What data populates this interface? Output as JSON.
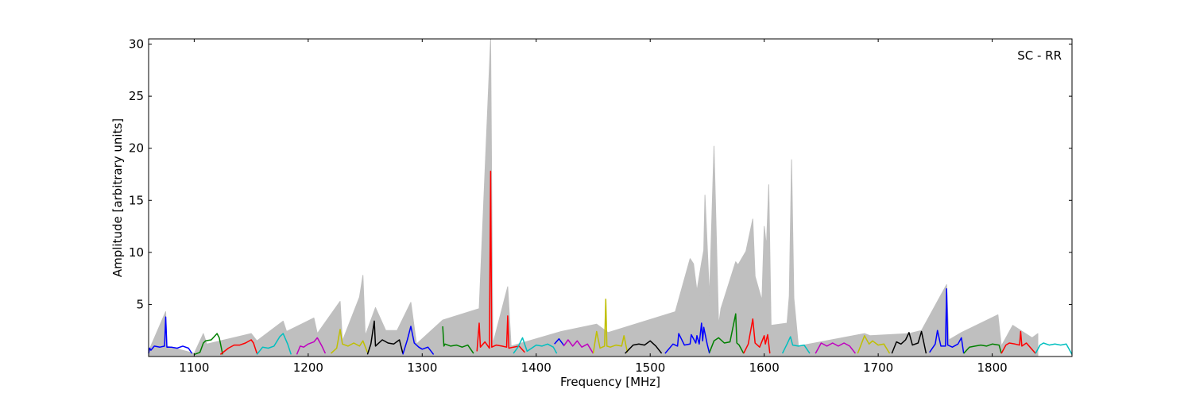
{
  "chart_data": {
    "type": "line",
    "title": "",
    "annotation": "SC - RR",
    "xlabel": "Frequency [MHz]",
    "ylabel": "Amplitude [arbitrary units]",
    "xlim": [
      1060,
      1870
    ],
    "ylim": [
      0,
      30.5
    ],
    "xticks": [
      1100,
      1200,
      1300,
      1400,
      1500,
      1600,
      1700,
      1800
    ],
    "yticks": [
      5,
      10,
      15,
      20,
      25,
      30
    ],
    "grid": false,
    "legend": "none",
    "background_series": {
      "color": "#bfbfbf",
      "points": [
        [
          1060,
          0.5
        ],
        [
          1075,
          4.3
        ],
        [
          1076,
          1.0
        ],
        [
          1100,
          0.3
        ],
        [
          1108,
          2.2
        ],
        [
          1111,
          1.2
        ],
        [
          1150,
          2.2
        ],
        [
          1155,
          1.5
        ],
        [
          1178,
          3.4
        ],
        [
          1181,
          2.4
        ],
        [
          1205,
          3.7
        ],
        [
          1208,
          2.2
        ],
        [
          1228,
          5.3
        ],
        [
          1230,
          1.5
        ],
        [
          1245,
          5.7
        ],
        [
          1248,
          7.8
        ],
        [
          1250,
          2.0
        ],
        [
          1259,
          4.7
        ],
        [
          1268,
          2.5
        ],
        [
          1278,
          2.5
        ],
        [
          1290,
          5.2
        ],
        [
          1295,
          1.2
        ],
        [
          1318,
          3.5
        ],
        [
          1350,
          4.6
        ],
        [
          1360,
          30.5
        ],
        [
          1362,
          1.2
        ],
        [
          1375,
          6.7
        ],
        [
          1378,
          1.0
        ],
        [
          1422,
          2.4
        ],
        [
          1453,
          3.1
        ],
        [
          1463,
          2.3
        ],
        [
          1522,
          4.3
        ],
        [
          1535,
          9.4
        ],
        [
          1538,
          8.9
        ],
        [
          1541,
          6.3
        ],
        [
          1545,
          9.0
        ],
        [
          1547,
          10.2
        ],
        [
          1548,
          15.5
        ],
        [
          1552,
          5.7
        ],
        [
          1556,
          20.2
        ],
        [
          1560,
          3.0
        ],
        [
          1562,
          4.6
        ],
        [
          1575,
          9.1
        ],
        [
          1577,
          8.8
        ],
        [
          1584,
          10.1
        ],
        [
          1590,
          13.2
        ],
        [
          1592,
          7.7
        ],
        [
          1598,
          5.4
        ],
        [
          1600,
          12.5
        ],
        [
          1602,
          10.6
        ],
        [
          1604,
          16.5
        ],
        [
          1606,
          3.0
        ],
        [
          1620,
          3.2
        ],
        [
          1622,
          5.8
        ],
        [
          1624,
          18.9
        ],
        [
          1626,
          5.6
        ],
        [
          1630,
          1.0
        ],
        [
          1688,
          2.2
        ],
        [
          1693,
          2.0
        ],
        [
          1727,
          2.2
        ],
        [
          1738,
          2.5
        ],
        [
          1760,
          6.9
        ],
        [
          1762,
          1.6
        ],
        [
          1773,
          2.3
        ],
        [
          1805,
          4.0
        ],
        [
          1808,
          1.0
        ],
        [
          1818,
          3.0
        ],
        [
          1835,
          1.8
        ],
        [
          1840,
          2.2
        ]
      ]
    },
    "series": [
      {
        "color": "#0000ff",
        "x": [
          1060,
          1061,
          1062,
          1065,
          1070,
          1074,
          1075,
          1076,
          1080,
          1085,
          1090,
          1095,
          1098
        ],
        "values": [
          0.3,
          0.8,
          0.6,
          1.0,
          0.9,
          1.0,
          3.8,
          0.9,
          0.9,
          0.8,
          1.0,
          0.8,
          0.3
        ]
      },
      {
        "color": "#008000",
        "x": [
          1100,
          1105,
          1108,
          1110,
          1115,
          1120,
          1122,
          1125
        ],
        "values": [
          0.2,
          0.4,
          1.3,
          1.5,
          1.6,
          2.2,
          1.8,
          0.2
        ]
      },
      {
        "color": "#ff0000",
        "x": [
          1123,
          1130,
          1135,
          1140,
          1145,
          1150,
          1152,
          1155
        ],
        "values": [
          0.2,
          0.8,
          1.1,
          1.1,
          1.3,
          1.6,
          1.3,
          0.3
        ]
      },
      {
        "color": "#00bfbf",
        "x": [
          1155,
          1160,
          1165,
          1170,
          1175,
          1178,
          1182,
          1185
        ],
        "values": [
          0.2,
          0.9,
          0.8,
          1.0,
          1.9,
          2.2,
          1.2,
          0.2
        ]
      },
      {
        "color": "#bf00bf",
        "x": [
          1190,
          1193,
          1196,
          1200,
          1205,
          1208,
          1212,
          1215
        ],
        "values": [
          0.2,
          1.0,
          0.9,
          1.2,
          1.4,
          1.8,
          1.0,
          0.3
        ]
      },
      {
        "color": "#bfbf00",
        "x": [
          1220,
          1225,
          1228,
          1230,
          1235,
          1240,
          1245,
          1248,
          1252
        ],
        "values": [
          0.3,
          0.8,
          2.6,
          1.2,
          1.0,
          1.3,
          1.0,
          1.5,
          0.4
        ]
      },
      {
        "color": "#000000",
        "x": [
          1252,
          1255,
          1258,
          1259,
          1260,
          1265,
          1270,
          1275,
          1280,
          1283
        ],
        "values": [
          0.2,
          1.2,
          3.4,
          1.0,
          1.1,
          1.6,
          1.3,
          1.2,
          1.6,
          0.3
        ]
      },
      {
        "color": "#0000ff",
        "x": [
          1283,
          1287,
          1290,
          1293,
          1297,
          1300,
          1305,
          1310
        ],
        "values": [
          0.2,
          1.6,
          2.9,
          1.3,
          0.9,
          0.7,
          0.9,
          0.2
        ]
      },
      {
        "color": "#008000",
        "x": [
          1318,
          1319,
          1320,
          1325,
          1330,
          1335,
          1340,
          1345
        ],
        "values": [
          2.9,
          1.0,
          1.2,
          1.0,
          1.1,
          0.9,
          1.1,
          0.3
        ]
      },
      {
        "color": "#ff0000",
        "x": [
          1348,
          1350,
          1351,
          1355,
          1359,
          1360,
          1361,
          1365,
          1370,
          1374,
          1375,
          1376,
          1380,
          1385,
          1390
        ],
        "values": [
          0.5,
          3.2,
          0.9,
          1.4,
          0.8,
          17.8,
          0.9,
          1.1,
          1.0,
          0.9,
          3.9,
          0.8,
          0.9,
          1.0,
          0.4
        ]
      },
      {
        "color": "#00bfbf",
        "x": [
          1380,
          1384,
          1388,
          1392,
          1400,
          1405,
          1410,
          1415,
          1418
        ],
        "values": [
          0.3,
          0.9,
          1.8,
          0.5,
          1.1,
          1.0,
          1.2,
          0.9,
          0.3
        ]
      },
      {
        "color": "#0000ff",
        "x": [
          1416,
          1420,
          1424
        ],
        "values": [
          1.2,
          1.7,
          1.1
        ]
      },
      {
        "color": "#bf00bf",
        "x": [
          1424,
          1428,
          1432,
          1436,
          1440,
          1445,
          1450
        ],
        "values": [
          1.0,
          1.6,
          1.0,
          1.5,
          0.9,
          1.2,
          0.3
        ]
      },
      {
        "color": "#bfbf00",
        "x": [
          1450,
          1453,
          1456,
          1460,
          1461,
          1462,
          1465,
          1470,
          1475,
          1477,
          1480
        ],
        "values": [
          0.3,
          2.4,
          0.8,
          1.0,
          5.5,
          1.0,
          0.9,
          1.1,
          1.0,
          2.0,
          0.4
        ]
      },
      {
        "color": "#000000",
        "x": [
          1478,
          1485,
          1490,
          1495,
          1500,
          1505,
          1510
        ],
        "values": [
          0.3,
          1.1,
          1.2,
          1.1,
          1.5,
          1.0,
          0.3
        ]
      },
      {
        "color": "#0000ff",
        "x": [
          1513,
          1520,
          1524,
          1525,
          1530,
          1535,
          1536,
          1540,
          1541,
          1543,
          1545,
          1546,
          1547,
          1550,
          1552
        ],
        "values": [
          0.3,
          1.2,
          1.0,
          2.2,
          1.1,
          1.2,
          2.1,
          1.3,
          2.0,
          1.2,
          3.2,
          1.5,
          2.8,
          1.2,
          0.3
        ]
      },
      {
        "color": "#008000",
        "x": [
          1552,
          1556,
          1560,
          1565,
          1570,
          1575,
          1576,
          1578,
          1582
        ],
        "values": [
          0.4,
          1.5,
          1.8,
          1.3,
          1.4,
          4.1,
          1.3,
          1.1,
          0.3
        ]
      },
      {
        "color": "#ff0000",
        "x": [
          1582,
          1586,
          1590,
          1592,
          1596,
          1600,
          1601,
          1603,
          1605
        ],
        "values": [
          0.3,
          1.2,
          3.6,
          1.3,
          0.9,
          2.0,
          1.2,
          2.1,
          0.3
        ]
      },
      {
        "color": "#00bfbf",
        "x": [
          1616,
          1620,
          1623,
          1625,
          1630,
          1635,
          1640
        ],
        "values": [
          0.3,
          1.2,
          1.9,
          1.1,
          1.0,
          1.1,
          0.3
        ]
      },
      {
        "color": "#bf00bf",
        "x": [
          1645,
          1650,
          1655,
          1660,
          1665,
          1670,
          1675,
          1680
        ],
        "values": [
          0.3,
          1.3,
          1.0,
          1.3,
          1.0,
          1.3,
          1.0,
          0.3
        ]
      },
      {
        "color": "#bfbf00",
        "x": [
          1682,
          1688,
          1692,
          1695,
          1700,
          1705,
          1710
        ],
        "values": [
          0.3,
          2.0,
          1.2,
          1.5,
          1.1,
          1.2,
          0.3
        ]
      },
      {
        "color": "#000000",
        "x": [
          1712,
          1716,
          1720,
          1724,
          1727,
          1730,
          1735,
          1738,
          1742
        ],
        "values": [
          0.3,
          1.4,
          1.2,
          1.6,
          2.3,
          1.1,
          1.3,
          2.4,
          0.3
        ]
      },
      {
        "color": "#0000ff",
        "x": [
          1745,
          1750,
          1752,
          1755,
          1759,
          1760,
          1761,
          1765,
          1770,
          1773,
          1775
        ],
        "values": [
          0.4,
          1.2,
          2.5,
          1.0,
          1.0,
          6.5,
          1.1,
          0.9,
          1.2,
          1.8,
          0.3
        ]
      },
      {
        "color": "#008000",
        "x": [
          1775,
          1780,
          1785,
          1790,
          1795,
          1800,
          1806,
          1808
        ],
        "values": [
          0.3,
          0.9,
          1.0,
          1.1,
          1.0,
          1.2,
          1.1,
          0.3
        ]
      },
      {
        "color": "#ff0000",
        "x": [
          1808,
          1812,
          1815,
          1820,
          1824,
          1825,
          1826,
          1830,
          1838
        ],
        "values": [
          0.3,
          1.1,
          1.3,
          1.2,
          1.1,
          2.4,
          1.0,
          1.3,
          0.3
        ]
      },
      {
        "color": "#00bfbf",
        "x": [
          1838,
          1842,
          1845,
          1850,
          1855,
          1860,
          1865,
          1870
        ],
        "values": [
          0.3,
          1.1,
          1.3,
          1.1,
          1.2,
          1.1,
          1.2,
          0.2
        ]
      }
    ]
  }
}
